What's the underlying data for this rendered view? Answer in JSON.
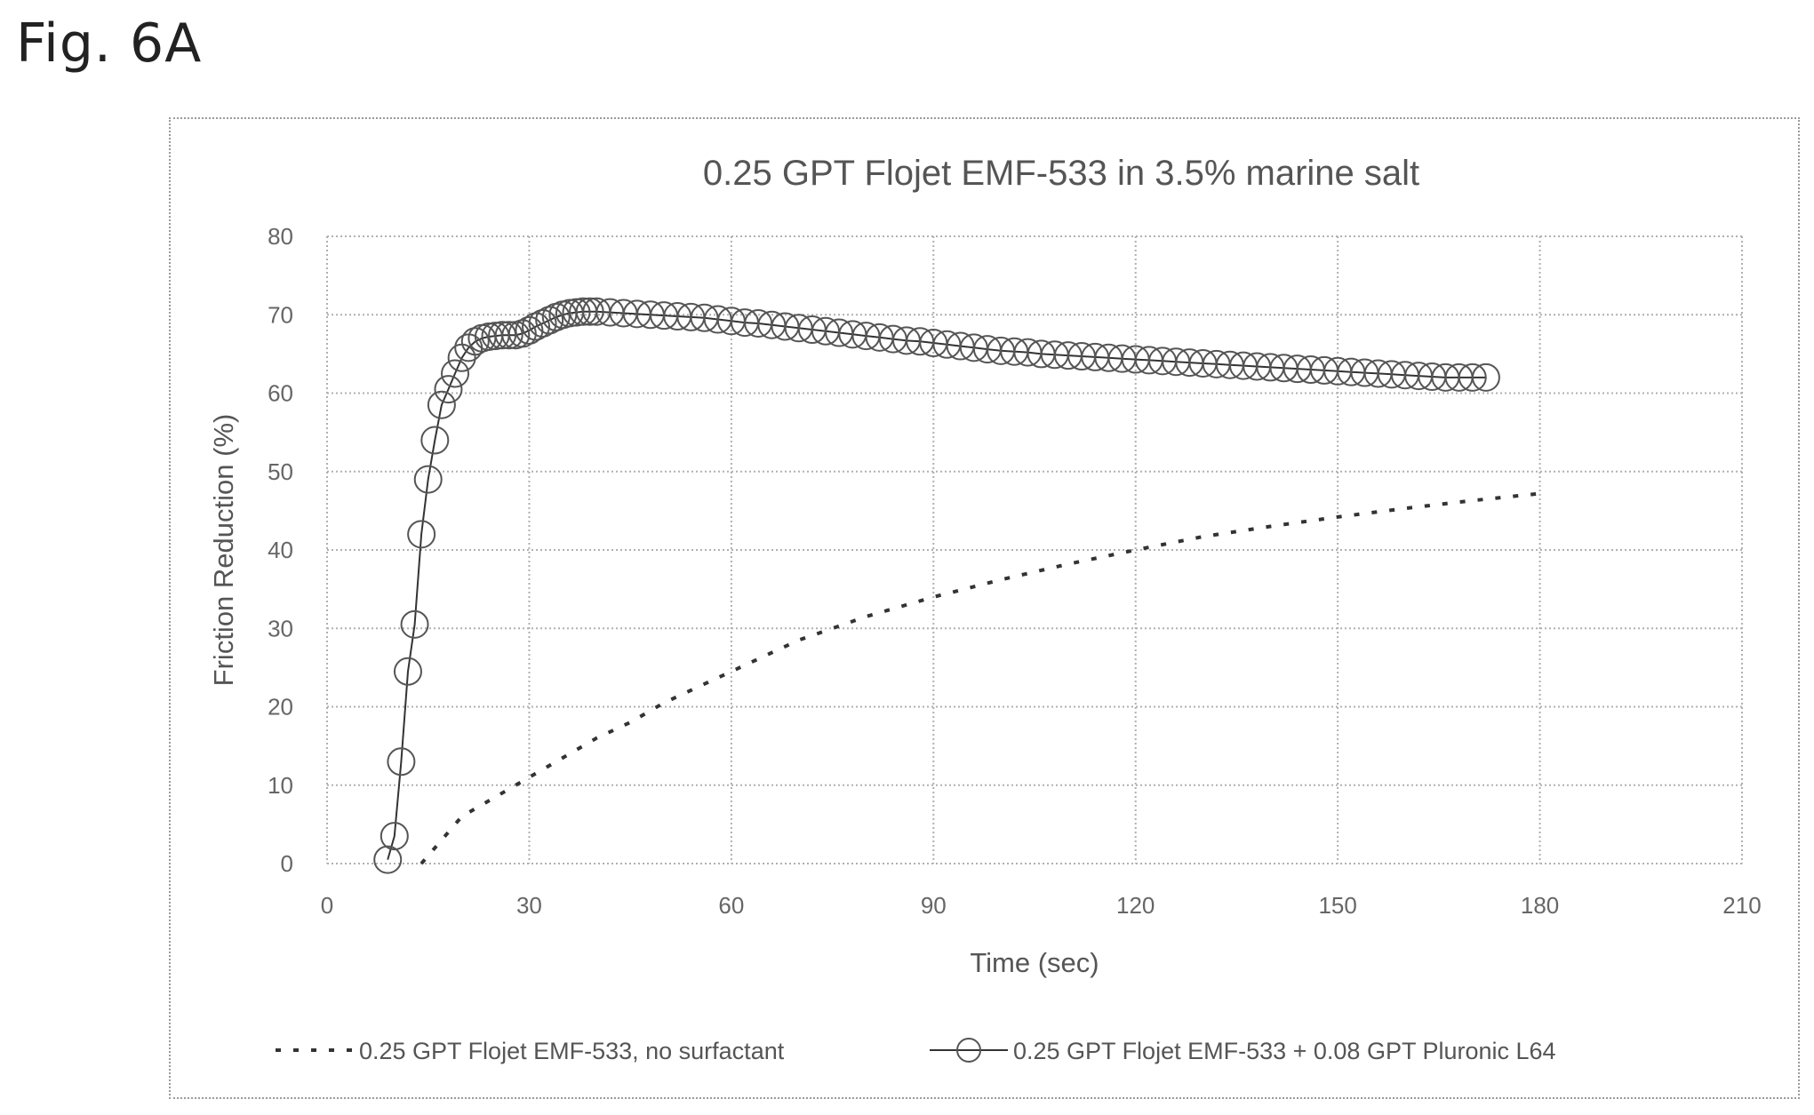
{
  "figure_label": "Fig. 6A",
  "chart_data": {
    "type": "line",
    "title": "0.25 GPT Flojet EMF-533 in 3.5% marine salt",
    "xlabel": "Time (sec)",
    "ylabel": "Friction Reduction (%)",
    "xlim": [
      0,
      210
    ],
    "ylim": [
      0,
      80
    ],
    "xticks": [
      0,
      30,
      60,
      90,
      120,
      150,
      180,
      210
    ],
    "yticks": [
      0,
      10,
      20,
      30,
      40,
      50,
      60,
      70,
      80
    ],
    "xtick_labels": [
      "0",
      "30",
      "60",
      "90",
      "120",
      "150",
      "180",
      "210"
    ],
    "ytick_labels": [
      "0",
      "10",
      "20",
      "30",
      "40",
      "50",
      "60",
      "70",
      "80"
    ],
    "grid": true,
    "legend_position": "bottom",
    "series": [
      {
        "name": "0.25 GPT Flojet EMF-533, no surfactant",
        "style": "dashed",
        "marker": "none",
        "color": "#333333",
        "x": [
          14,
          17,
          20,
          25,
          30,
          35,
          40,
          45,
          50,
          55,
          60,
          65,
          70,
          75,
          80,
          90,
          100,
          110,
          120,
          130,
          140,
          150,
          160,
          170,
          180
        ],
        "y": [
          0,
          3,
          6,
          8.5,
          11,
          13.5,
          16,
          18,
          20.5,
          22.5,
          24.5,
          26.5,
          28.5,
          30,
          31.5,
          34,
          36.2,
          38.2,
          40,
          41.7,
          43,
          44.2,
          45.3,
          46.3,
          47.2
        ]
      },
      {
        "name": "0.25 GPT Flojet EMF-533 + 0.08 GPT Pluronic L64",
        "style": "solid",
        "marker": "circle",
        "color": "#333333",
        "x": [
          9,
          10,
          11,
          12,
          13,
          14,
          15,
          16,
          17,
          18,
          19,
          20,
          21,
          22,
          23,
          24,
          25,
          26,
          27,
          28,
          29,
          30,
          31,
          32,
          33,
          34,
          35,
          36,
          37,
          38,
          39,
          40,
          42,
          44,
          46,
          48,
          50,
          52,
          54,
          56,
          58,
          60,
          62,
          64,
          66,
          68,
          70,
          72,
          74,
          76,
          78,
          80,
          82,
          84,
          86,
          88,
          90,
          92,
          94,
          96,
          98,
          100,
          102,
          104,
          106,
          108,
          110,
          112,
          114,
          116,
          118,
          120,
          122,
          124,
          126,
          128,
          130,
          132,
          134,
          136,
          138,
          140,
          142,
          144,
          146,
          148,
          150,
          152,
          154,
          156,
          158,
          160,
          162,
          164,
          166,
          168,
          170,
          172
        ],
        "y": [
          0.5,
          3.5,
          13,
          24.5,
          30.5,
          42,
          49,
          54,
          58.5,
          60.5,
          62.5,
          64.5,
          65.8,
          66.6,
          67.0,
          67.2,
          67.3,
          67.4,
          67.4,
          67.4,
          67.6,
          68.0,
          68.5,
          68.9,
          69.3,
          69.7,
          70.0,
          70.2,
          70.3,
          70.4,
          70.4,
          70.4,
          70.3,
          70.2,
          70.1,
          70.0,
          69.9,
          69.8,
          69.7,
          69.6,
          69.4,
          69.2,
          69.0,
          68.9,
          68.7,
          68.5,
          68.3,
          68.1,
          67.9,
          67.7,
          67.5,
          67.3,
          67.1,
          66.9,
          66.7,
          66.6,
          66.4,
          66.2,
          66.0,
          65.8,
          65.6,
          65.4,
          65.3,
          65.2,
          65.0,
          64.9,
          64.8,
          64.7,
          64.6,
          64.5,
          64.4,
          64.3,
          64.2,
          64.1,
          64.0,
          63.9,
          63.8,
          63.7,
          63.6,
          63.5,
          63.4,
          63.3,
          63.2,
          63.1,
          63.0,
          62.9,
          62.8,
          62.7,
          62.6,
          62.5,
          62.4,
          62.3,
          62.2,
          62.1,
          62.0,
          62.0,
          62.0,
          62.0
        ]
      }
    ]
  }
}
